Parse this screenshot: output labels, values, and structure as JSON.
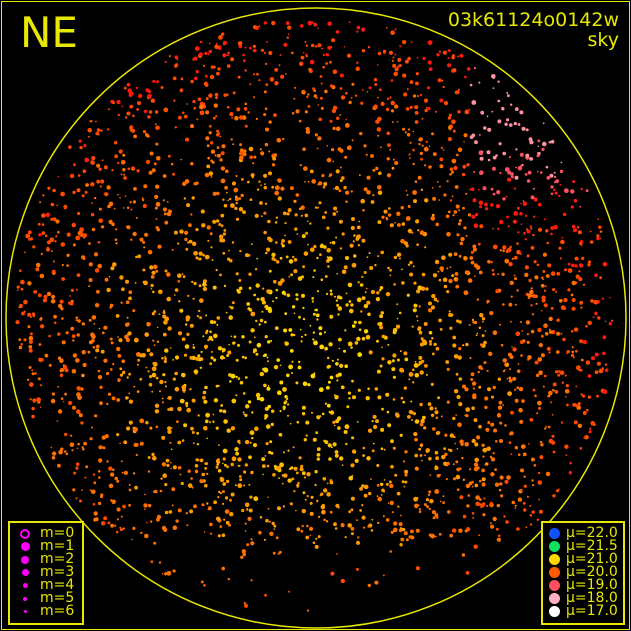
{
  "direction_label": "NE",
  "frame_id": "03k61124o0142w",
  "image_type": "sky",
  "magnitude_legend": [
    {
      "label": "m=0",
      "style": "ring"
    },
    {
      "label": "m=1",
      "style": "filled"
    },
    {
      "label": "m=2",
      "style": "filled"
    },
    {
      "label": "m=3",
      "style": "filled"
    },
    {
      "label": "m=4",
      "style": "filled"
    },
    {
      "label": "m=5",
      "style": "filled"
    },
    {
      "label": "m=6",
      "style": "filled"
    }
  ],
  "magnitude_color": "#ff00ff",
  "brightness_legend": [
    {
      "label": "μ=22.0",
      "color": "#1050ff"
    },
    {
      "label": "μ=21.5",
      "color": "#10e060"
    },
    {
      "label": "μ=21.0",
      "color": "#ffd800"
    },
    {
      "label": "μ=20.0",
      "color": "#ff5a00"
    },
    {
      "label": "μ=19.0",
      "color": "#ff5060"
    },
    {
      "label": "μ=18.0",
      "color": "#ffb0c0"
    },
    {
      "label": "μ=17.0",
      "color": "#ffffff"
    }
  ],
  "accent_color": "#e8e800"
}
